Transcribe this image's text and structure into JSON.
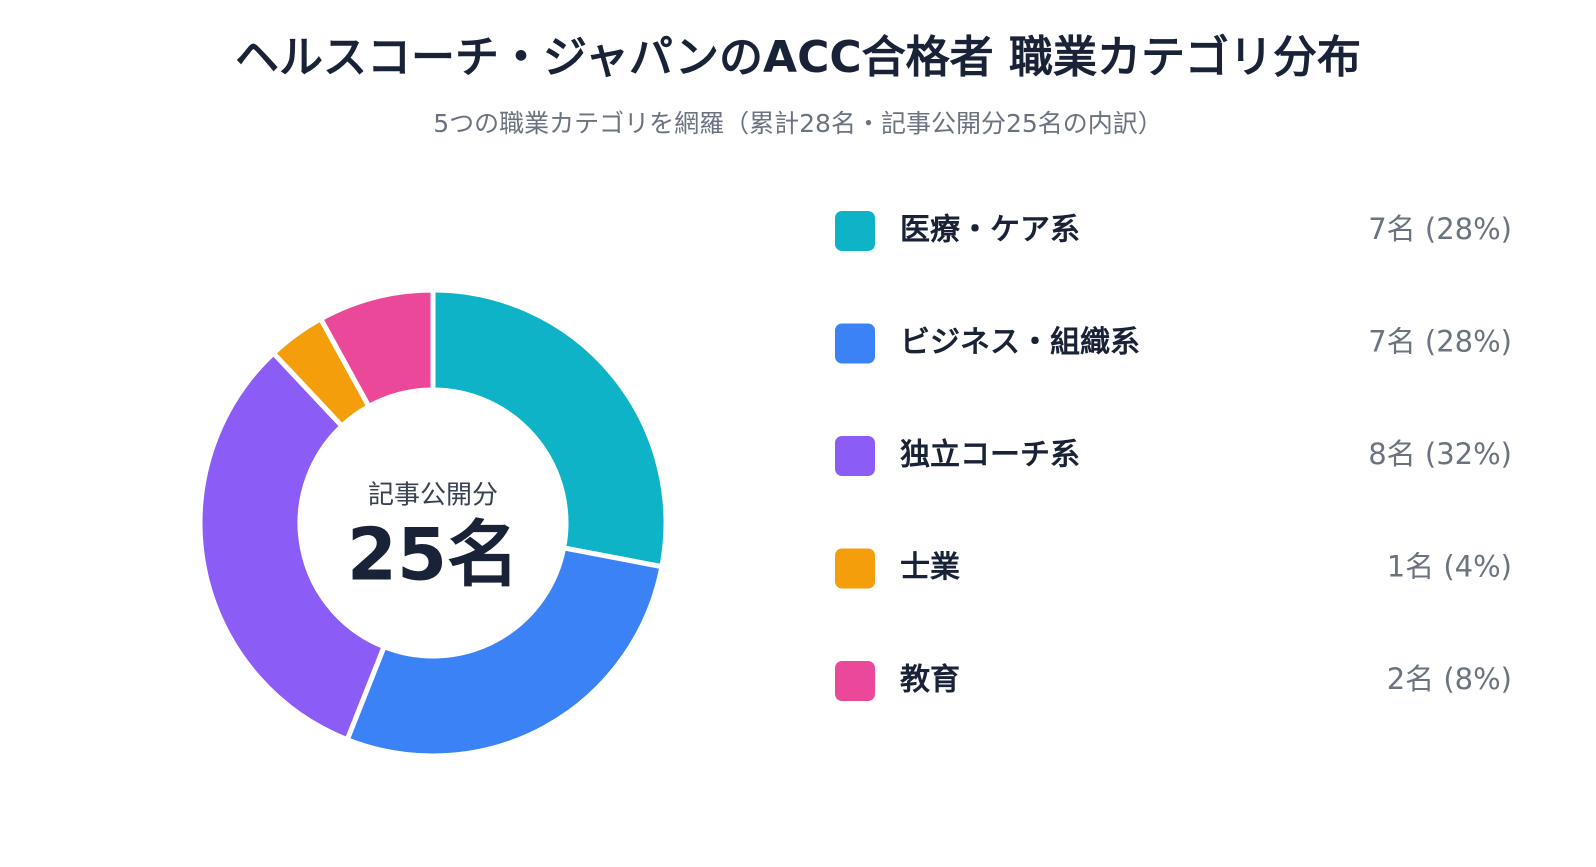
{
  "chart_data": {
    "type": "donut",
    "title": "ヘルスコーチ・ジャパンのACC合格者 職業カテゴリ分布",
    "subtitle": "5つの職業カテゴリを網羅（累計28名・記事公開分25名の内訳）",
    "center_label": "記事公開分",
    "center_total": "25名",
    "categories": [
      "医療・ケア系",
      "ビジネス・組織系",
      "独立コーチ系",
      "士業",
      "教育"
    ],
    "values": [
      7,
      7,
      8,
      1,
      2
    ],
    "value_labels": [
      "7名 (28%)",
      "7名 (28%)",
      "8名 (32%)",
      "1名 (4%)",
      "2名 (8%)"
    ],
    "colors": [
      "#0eb3c8",
      "#3b82f6",
      "#8b5cf6",
      "#f59e0b",
      "#ec4899"
    ]
  }
}
